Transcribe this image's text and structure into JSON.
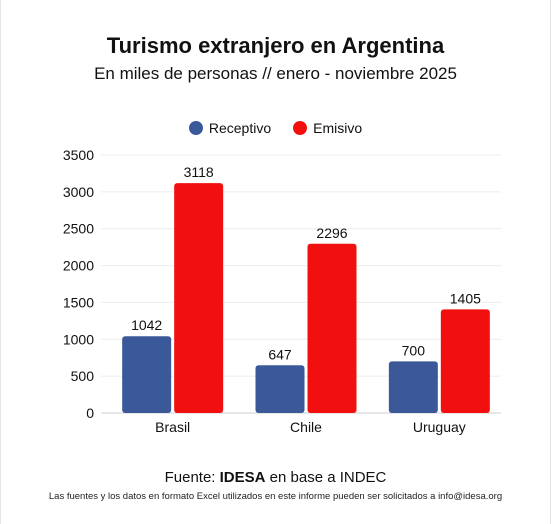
{
  "title": "Turismo extranjero en Argentina",
  "subtitle": "En miles de personas // enero - noviembre 2025",
  "source": {
    "prefix": "Fuente: ",
    "org": "IDESA",
    "suffix": " en base a INDEC"
  },
  "note": "Las fuentes y los datos en formato Excel utilizados en este informe pueden ser solicitados a info@idesa.org",
  "chart_data": {
    "type": "bar",
    "title": "Turismo extranjero en Argentina",
    "subtitle": "En miles de personas // enero - noviembre 2025",
    "categories": [
      "Brasil",
      "Chile",
      "Uruguay"
    ],
    "series": [
      {
        "name": "Receptivo",
        "values": [
          1042,
          647,
          700
        ],
        "color": "#3b5998"
      },
      {
        "name": "Emisivo",
        "values": [
          3118,
          2296,
          1405
        ],
        "color": "#f20f0f"
      }
    ],
    "ylim": [
      0,
      3500
    ],
    "yticks": [
      0,
      500,
      1000,
      1500,
      2000,
      2500,
      3000,
      3500
    ],
    "grid": true,
    "legend": "top-center",
    "data_labels": true
  }
}
